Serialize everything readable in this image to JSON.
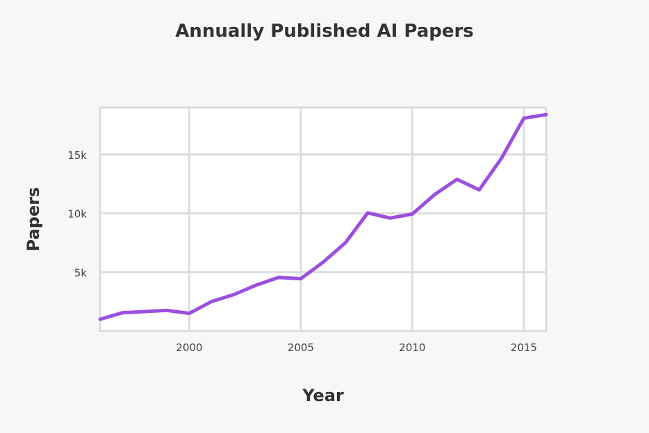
{
  "chart_data": {
    "type": "line",
    "title": "Annually Published AI Papers",
    "xlabel": "Year",
    "ylabel": "Papers",
    "xlim": [
      1996,
      2016
    ],
    "ylim": [
      0,
      19000
    ],
    "x_ticks": [
      2000,
      2005,
      2010,
      2015
    ],
    "x_tick_labels": [
      "2000",
      "2005",
      "2010",
      "2015"
    ],
    "y_ticks": [
      5000,
      10000,
      15000
    ],
    "y_tick_labels": [
      "5k",
      "10k",
      "15k"
    ],
    "grid": true,
    "line_color": "#9b4fde",
    "series": [
      {
        "x": [
          1996,
          1997,
          1998,
          1999,
          2000,
          2001,
          2002,
          2003,
          2004,
          2005,
          2006,
          2007,
          2008,
          2009,
          2010,
          2011,
          2012,
          2013,
          2014,
          2015,
          2016
        ],
        "values": [
          1000,
          1550,
          1650,
          1750,
          1500,
          2500,
          3100,
          3900,
          4550,
          4450,
          5850,
          7500,
          10050,
          9600,
          9950,
          11600,
          12900,
          12000,
          14700,
          18100,
          18400
        ]
      }
    ]
  }
}
